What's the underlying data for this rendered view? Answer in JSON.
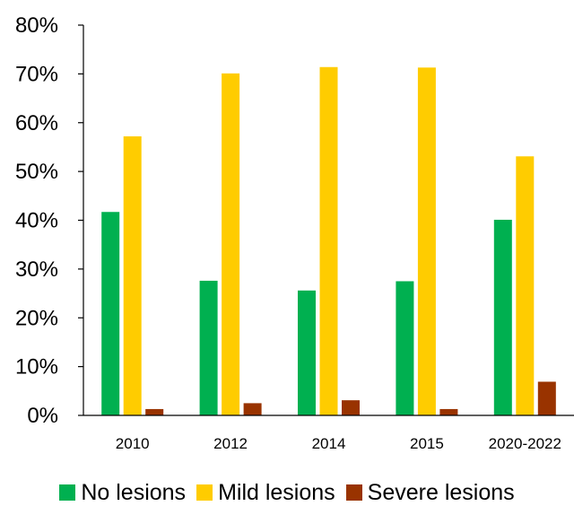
{
  "chart_data": {
    "type": "bar",
    "categories": [
      "2010",
      "2012",
      "2014",
      "2015",
      "2020-2022"
    ],
    "series": [
      {
        "name": "No lesions",
        "color": "#00B050",
        "values": [
          41.7,
          27.6,
          25.6,
          27.5,
          40.1
        ]
      },
      {
        "name": "Mild lesions",
        "color": "#FFCC00",
        "values": [
          57.2,
          70.1,
          71.4,
          71.3,
          53.1
        ]
      },
      {
        "name": "Severe lesions",
        "color": "#993300",
        "values": [
          1.3,
          2.5,
          3.1,
          1.3,
          6.9
        ]
      }
    ],
    "yticks": [
      "0%",
      "10%",
      "20%",
      "30%",
      "40%",
      "50%",
      "60%",
      "70%",
      "80%"
    ],
    "ylim": [
      0,
      80
    ],
    "title": "",
    "xlabel": "",
    "ylabel": "",
    "grid": false,
    "legend_position": "bottom"
  }
}
